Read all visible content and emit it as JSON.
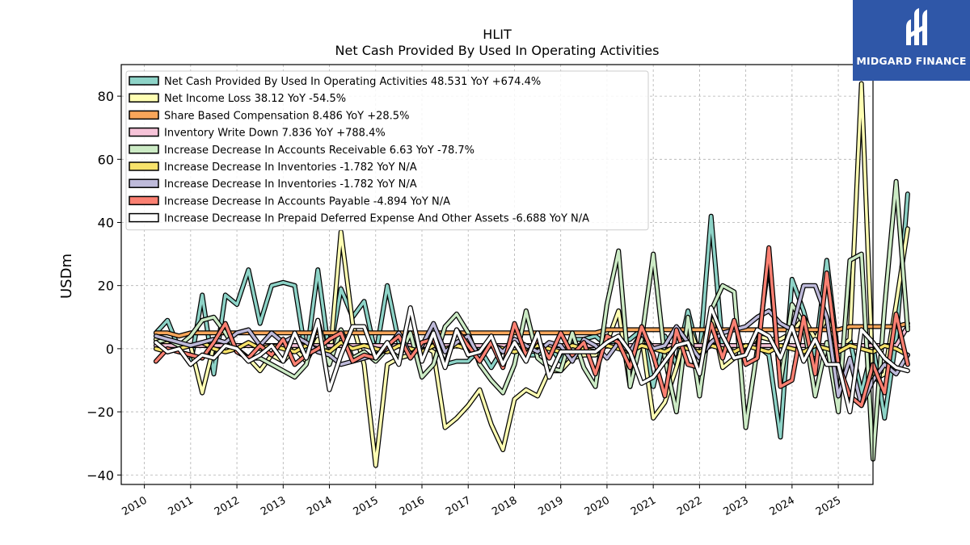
{
  "chart_data": {
    "type": "line",
    "title": "HLIT",
    "subtitle": "Net Cash Provided By Used In Operating Activities",
    "ylabel": "USDm",
    "xlabel": "",
    "xlim": [
      2009.5,
      2025.75
    ],
    "ylim": [
      -43,
      90
    ],
    "yticks": [
      -40,
      -20,
      0,
      20,
      40,
      60,
      80
    ],
    "xticks": [
      "2010",
      "2011",
      "2012",
      "2013",
      "2014",
      "2015",
      "2016",
      "2017",
      "2018",
      "2019",
      "2020",
      "2021",
      "2022",
      "2023",
      "2024",
      "2025"
    ],
    "grid": true,
    "legend_position": "top-left",
    "series": [
      {
        "name": "Net Cash Provided By Used In Operating Activities",
        "legend": "Net Cash Provided By Used In Operating Activities  48.531 YoY +674.4%",
        "color": "#8dd3c7",
        "values": [
          5,
          9,
          0,
          -5,
          17,
          -8,
          17,
          14,
          25,
          8,
          20,
          21,
          20,
          -3,
          25,
          -2,
          19,
          10,
          15,
          -2,
          20,
          2,
          -1,
          -3,
          3,
          -5,
          -4,
          -4,
          0,
          -6,
          0,
          2,
          -2,
          -2,
          1,
          -4,
          3,
          3,
          4,
          1,
          2,
          3,
          6,
          -12,
          4,
          -5,
          12,
          -3,
          42,
          0,
          1,
          1,
          1,
          -2,
          -28,
          22,
          12,
          -2,
          28,
          -3,
          3,
          -14,
          1,
          -22,
          3,
          49
        ]
      },
      {
        "name": "Net Income Loss",
        "legend": "Net Income Loss  38.12 YoY -54.5%",
        "color": "#ffffb3",
        "values": [
          3,
          2,
          0,
          1,
          -14,
          1,
          1,
          0,
          -3,
          -7,
          -2,
          -4,
          0,
          -4,
          3,
          -5,
          37,
          8,
          -5,
          -37,
          -5,
          -3,
          -2,
          1,
          -1,
          -25,
          -22,
          -18,
          -13,
          -24,
          -32,
          -16,
          -13,
          -15,
          -7,
          -7,
          -3,
          -2,
          -2,
          2,
          12,
          -12,
          4,
          -22,
          -17,
          -6,
          8,
          -2,
          11,
          -6,
          -3,
          -1,
          4,
          3,
          3,
          5,
          10,
          3,
          10,
          0,
          3,
          84,
          -10,
          -8,
          14,
          38
        ]
      },
      {
        "name": "Share Based Compensation",
        "legend": "Share Based Compensation  8.486 YoY +28.5%",
        "color": "#f9a65a",
        "values": [
          5,
          5,
          4,
          5,
          5,
          5,
          5,
          5,
          5,
          5,
          5,
          5,
          5,
          5,
          5,
          5,
          5,
          5,
          5,
          5,
          5,
          5,
          5,
          5,
          5,
          5,
          5,
          5,
          5,
          5,
          5,
          5,
          5,
          5,
          5,
          5,
          5,
          5,
          5,
          6,
          6,
          6,
          6,
          6,
          6,
          6,
          6,
          6,
          6,
          6,
          6,
          6,
          6,
          6,
          6,
          6,
          6,
          6,
          6,
          6,
          7,
          7,
          7,
          7,
          7,
          8
        ]
      },
      {
        "name": "Inventory Write Down",
        "legend": "Inventory Write Down  7.836 YoY +788.4%",
        "color": "#f6c3d8",
        "values": [
          1,
          1,
          1,
          1,
          1,
          1,
          1,
          1,
          1,
          1,
          1,
          1,
          1,
          1,
          1,
          1,
          1,
          1,
          1,
          1,
          1,
          1,
          1,
          1,
          1,
          1,
          1,
          1,
          1,
          1,
          1,
          1,
          1,
          1,
          1,
          1,
          1,
          1,
          1,
          1,
          1,
          1,
          1,
          1,
          1,
          1,
          1,
          1,
          1,
          1,
          1,
          1,
          1,
          1,
          1,
          1,
          1,
          1,
          1,
          1,
          1,
          1,
          1,
          1,
          1,
          7
        ]
      },
      {
        "name": "Increase Decrease In Accounts Receivable",
        "legend": "Increase Decrease In Accounts Receivable  6.63 YoY -78.7%",
        "color": "#ccebc5",
        "values": [
          2,
          3,
          1,
          4,
          9,
          10,
          5,
          -1,
          -3,
          -3,
          -5,
          -7,
          -9,
          -5,
          9,
          -5,
          6,
          -3,
          -1,
          -4,
          0,
          -3,
          5,
          -9,
          -5,
          7,
          11,
          5,
          -5,
          -10,
          -14,
          -5,
          12,
          -3,
          -6,
          -7,
          5,
          -6,
          -12,
          14,
          31,
          -12,
          3,
          30,
          -3,
          -20,
          10,
          -15,
          12,
          20,
          18,
          -25,
          0,
          28,
          -11,
          14,
          8,
          -15,
          2,
          -20,
          28,
          30,
          -35,
          13,
          53,
          6
        ]
      },
      {
        "name": "Increase Decrease In Inventories",
        "legend": "Increase Decrease In Inventories  -1.782 YoY N/A",
        "color": "#f7e26b",
        "values": [
          0,
          -1,
          0,
          1,
          2,
          0,
          -1,
          0,
          2,
          0,
          1,
          0,
          -1,
          1,
          0,
          -1,
          2,
          0,
          1,
          0,
          -1,
          1,
          0,
          -1,
          1,
          0,
          1,
          0,
          -1,
          1,
          0,
          -1,
          0,
          1,
          0,
          -1,
          1,
          0,
          -1,
          1,
          0,
          -1,
          1,
          0,
          -1,
          1,
          0,
          -1,
          1,
          0,
          -1,
          1,
          0,
          -1,
          1,
          0,
          -1,
          1,
          0,
          -1,
          1,
          0,
          -1,
          1,
          0,
          -2
        ]
      },
      {
        "name": "Increase Decrease In Inventories",
        "legend": "Increase Decrease In Inventories  -1.782 YoY N/A",
        "color": "#bebada",
        "values": [
          4,
          3,
          2,
          1,
          2,
          3,
          2,
          5,
          6,
          1,
          5,
          2,
          4,
          2,
          -1,
          -2,
          -5,
          -4,
          -3,
          -2,
          0,
          5,
          -2,
          1,
          8,
          -1,
          2,
          4,
          -3,
          2,
          -1,
          3,
          1,
          -1,
          2,
          1,
          -4,
          3,
          1,
          -3,
          2,
          -1,
          5,
          0,
          1,
          7,
          2,
          -3,
          2,
          5,
          6,
          7,
          10,
          12,
          8,
          6,
          20,
          20,
          10,
          -15,
          -3,
          -18,
          -10,
          -5,
          -8,
          -2
        ]
      },
      {
        "name": "Increase Decrease In Accounts Payable",
        "legend": "Increase Decrease In Accounts Payable  -4.894 YoY N/A",
        "color": "#fb8072",
        "values": [
          -4,
          0,
          -1,
          -2,
          -3,
          2,
          8,
          -1,
          -3,
          1,
          -2,
          3,
          -5,
          -2,
          0,
          3,
          5,
          -4,
          -2,
          -3,
          1,
          4,
          -3,
          2,
          3,
          -5,
          6,
          1,
          -4,
          2,
          -6,
          8,
          -2,
          3,
          -3,
          5,
          -2,
          2,
          -8,
          4,
          2,
          -6,
          7,
          -2,
          -15,
          6,
          -5,
          -6,
          8,
          -3,
          9,
          -5,
          -3,
          32,
          -12,
          -10,
          10,
          -8,
          24,
          -5,
          -15,
          -18,
          -5,
          -14,
          11,
          -5
        ]
      },
      {
        "name": "Increase Decrease In Prepaid Deferred Expense And Other Assets",
        "legend": "Increase Decrease In Prepaid Deferred Expense And Other Assets  -6.688 YoY N/A",
        "color": "#ffffff",
        "values": [
          2,
          -1,
          0,
          -5,
          -2,
          -3,
          1,
          0,
          -4,
          -2,
          1,
          -4,
          5,
          -3,
          9,
          -13,
          -2,
          7,
          7,
          -3,
          2,
          -5,
          13,
          -4,
          5,
          -6,
          6,
          -2,
          -1,
          4,
          -5,
          2,
          -4,
          5,
          -9,
          -1,
          -1,
          -1,
          -1,
          2,
          4,
          -1,
          -11,
          -9,
          -4,
          1,
          2,
          -8,
          13,
          4,
          -3,
          -2,
          6,
          4,
          -3,
          7,
          -4,
          3,
          -5,
          -5,
          -20,
          6,
          2,
          -3,
          -6,
          -7
        ]
      }
    ]
  },
  "logo": {
    "text": "MIDGARD FINANCE"
  }
}
